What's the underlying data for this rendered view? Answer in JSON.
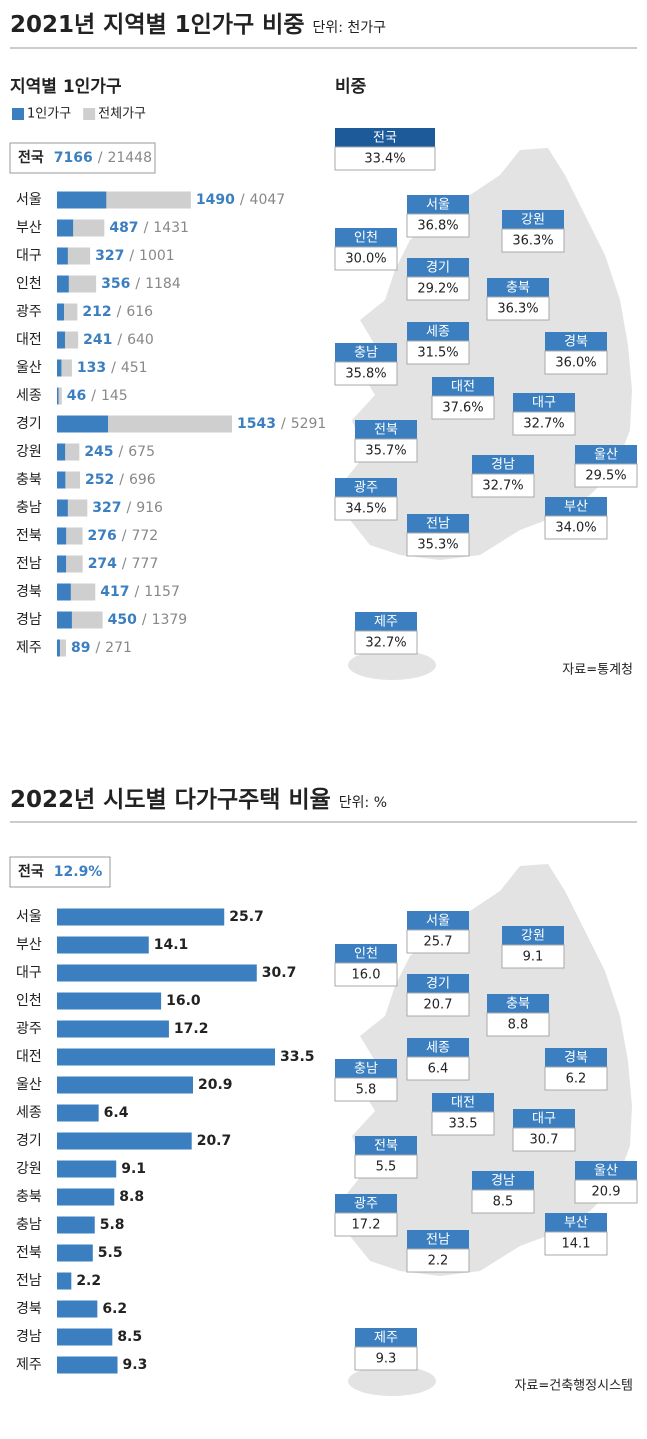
{
  "chart_data": [
    {
      "type": "bar",
      "title": "2021년 지역별 1인가구 비중",
      "unit": "단위: 천가구",
      "subtitle": "지역별 1인가구",
      "total": {
        "label": "전국",
        "values": [
          7166,
          21448
        ]
      },
      "separator": "/",
      "categories": [
        "서울",
        "부산",
        "대구",
        "인천",
        "광주",
        "대전",
        "울산",
        "세종",
        "경기",
        "강원",
        "충북",
        "충남",
        "전북",
        "전남",
        "경북",
        "경남",
        "제주"
      ],
      "series": [
        {
          "name": "1인가구",
          "color": "#3b7fc0",
          "values": [
            1490,
            487,
            327,
            356,
            212,
            241,
            133,
            46,
            1543,
            245,
            252,
            327,
            276,
            274,
            417,
            450,
            89
          ]
        },
        {
          "name": "전체가구",
          "color": "#cfcfcf",
          "values": [
            4047,
            1431,
            1001,
            1184,
            616,
            640,
            451,
            145,
            5291,
            675,
            696,
            916,
            772,
            777,
            1157,
            1379,
            271
          ]
        }
      ]
    },
    {
      "type": "map",
      "title": "비중",
      "color": "#3b7fc0",
      "note": "자료=통계청",
      "total": {
        "label": "전국",
        "value": 33.4,
        "value_label": "33.4%"
      },
      "categories": [
        "서울",
        "부산",
        "대구",
        "인천",
        "광주",
        "대전",
        "울산",
        "세종",
        "경기",
        "강원",
        "충북",
        "충남",
        "전북",
        "전남",
        "경북",
        "경남",
        "제주"
      ],
      "values": [
        36.8,
        34.0,
        32.7,
        30.0,
        34.5,
        37.6,
        29.5,
        31.5,
        29.2,
        36.3,
        36.3,
        35.8,
        35.7,
        35.3,
        36.0,
        32.7,
        32.7
      ],
      "value_labels": [
        "36.8%",
        "34.0%",
        "32.7%",
        "30.0%",
        "34.5%",
        "37.6%",
        "29.5%",
        "31.5%",
        "29.2%",
        "36.3%",
        "36.3%",
        "35.8%",
        "35.7%",
        "35.3%",
        "36.0%",
        "32.7%",
        "32.7%"
      ]
    },
    {
      "type": "bar",
      "title": "2022년 시도별 다가구주택 비율",
      "unit": "단위: %",
      "color": "#3b7fc0",
      "total": {
        "label": "전국",
        "value": 12.9,
        "value_label": "12.9%"
      },
      "categories": [
        "서울",
        "부산",
        "대구",
        "인천",
        "광주",
        "대전",
        "울산",
        "세종",
        "경기",
        "강원",
        "충북",
        "충남",
        "전북",
        "전남",
        "경북",
        "경남",
        "제주"
      ],
      "values": [
        25.7,
        14.1,
        30.7,
        16.0,
        17.2,
        33.5,
        20.9,
        6.4,
        20.7,
        9.1,
        8.8,
        5.8,
        5.5,
        2.2,
        6.2,
        8.5,
        9.3
      ],
      "value_labels": [
        "25.7",
        "14.1",
        "30.7",
        "16.0",
        "17.2",
        "33.5",
        "20.9",
        "6.4",
        "20.7",
        "9.1",
        "8.8",
        "5.8",
        "5.5",
        "2.2",
        "6.2",
        "8.5",
        "9.3"
      ]
    },
    {
      "type": "map",
      "color": "#3b7fc0",
      "note": "자료=건축행정시스템",
      "categories": [
        "서울",
        "부산",
        "대구",
        "인천",
        "광주",
        "대전",
        "울산",
        "세종",
        "경기",
        "강원",
        "충북",
        "충남",
        "전북",
        "전남",
        "경북",
        "경남",
        "제주"
      ],
      "values": [
        25.7,
        14.1,
        30.7,
        16.0,
        17.2,
        33.5,
        20.9,
        6.4,
        20.7,
        9.1,
        8.8,
        5.8,
        5.5,
        2.2,
        6.2,
        8.5,
        9.3
      ],
      "value_labels": [
        "25.7",
        "14.1",
        "30.7",
        "16.0",
        "17.2",
        "33.5",
        "20.9",
        "6.4",
        "20.7",
        "9.1",
        "8.8",
        "5.8",
        "5.5",
        "2.2",
        "6.2",
        "8.5",
        "9.3"
      ]
    }
  ]
}
